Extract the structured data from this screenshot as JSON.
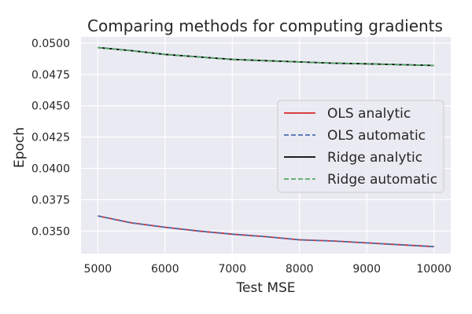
{
  "chart_data": {
    "type": "line",
    "title": "Comparing methods for computing gradients",
    "xlabel": "Test MSE",
    "ylabel": "Epoch",
    "xlim": [
      4750,
      10250
    ],
    "ylim": [
      0.0332,
      0.0505
    ],
    "x_ticks": [
      5000,
      6000,
      7000,
      8000,
      9000,
      10000
    ],
    "x_tick_labels": [
      "5000",
      "6000",
      "7000",
      "8000",
      "9000",
      "10000"
    ],
    "y_ticks": [
      0.035,
      0.0375,
      0.04,
      0.0425,
      0.045,
      0.0475,
      0.05
    ],
    "y_tick_labels": [
      "0.0350",
      "0.0375",
      "0.0400",
      "0.0425",
      "0.0450",
      "0.0475",
      "0.0500"
    ],
    "grid": true,
    "legend_position": "center-right",
    "x": [
      5000,
      5500,
      6000,
      6500,
      7000,
      7500,
      8000,
      8500,
      9000,
      9500,
      10000
    ],
    "series": [
      {
        "name": "OLS analytic",
        "color": "#d62728",
        "dash": "solid",
        "values": [
          0.0362,
          0.03565,
          0.0353,
          0.035,
          0.03475,
          0.03455,
          0.0343,
          0.0342,
          0.03405,
          0.0339,
          0.03375
        ]
      },
      {
        "name": "OLS automatic",
        "color": "#4c72b0",
        "dash": "dashed",
        "values": [
          0.0362,
          0.03565,
          0.0353,
          0.035,
          0.03475,
          0.03455,
          0.0343,
          0.0342,
          0.03405,
          0.0339,
          0.03375
        ]
      },
      {
        "name": "Ridge analytic",
        "color": "#000000",
        "dash": "solid",
        "values": [
          0.04965,
          0.0494,
          0.0491,
          0.0489,
          0.0487,
          0.0486,
          0.0485,
          0.0484,
          0.04835,
          0.04828,
          0.04822
        ]
      },
      {
        "name": "Ridge automatic",
        "color": "#55a868",
        "dash": "dashed",
        "values": [
          0.04965,
          0.0494,
          0.0491,
          0.0489,
          0.0487,
          0.0486,
          0.0485,
          0.0484,
          0.04835,
          0.04828,
          0.04822
        ]
      }
    ]
  }
}
